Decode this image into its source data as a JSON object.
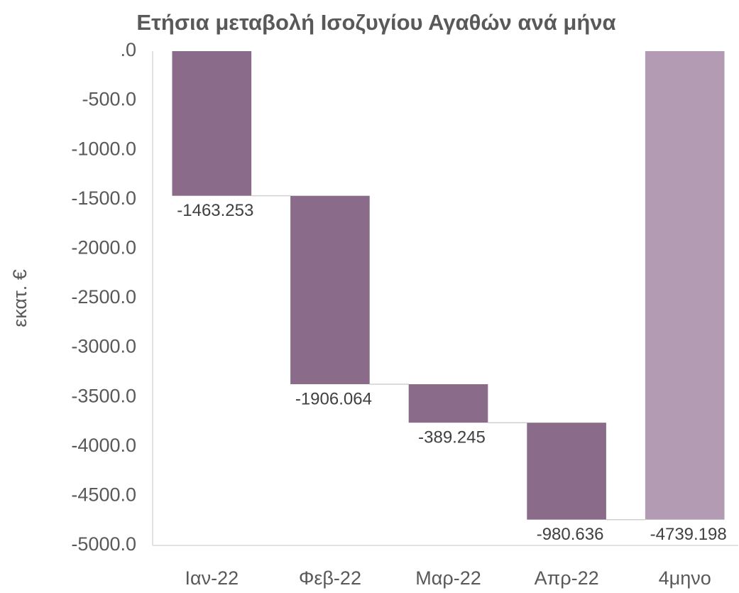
{
  "chart_data": {
    "type": "waterfall",
    "title": "Ετήσια μεταβολή Ισοζυγίου Αγαθών ανά μήνα",
    "y_label": "εκατ. €",
    "categories": [
      "Ιαν-22",
      "Φεβ-22",
      "Μαρ-22",
      "Απρ-22",
      "4μηνο"
    ],
    "values": [
      -1463.253,
      -1906.064,
      -389.245,
      -980.636,
      -4739.198
    ],
    "is_total": [
      false,
      false,
      false,
      false,
      true
    ],
    "color": "#8b6b8a",
    "total_color": "#b39bb3",
    "ylim": [
      0,
      -5000
    ],
    "yticks": [
      {
        "value": 0,
        "label": ".0"
      },
      {
        "value": -500,
        "label": "-500.0"
      },
      {
        "value": -1000,
        "label": "-1000.0"
      },
      {
        "value": -1500,
        "label": "-1500.0"
      },
      {
        "value": -2000,
        "label": "-2000.0"
      },
      {
        "value": -2500,
        "label": "-2500.0"
      },
      {
        "value": -3000,
        "label": "-3000.0"
      },
      {
        "value": -3500,
        "label": "-3500.0"
      },
      {
        "value": -4000,
        "label": "-4000.0"
      },
      {
        "value": -4500,
        "label": "-4500.0"
      },
      {
        "value": -5000,
        "label": "-5000.0"
      }
    ],
    "grid": false
  }
}
